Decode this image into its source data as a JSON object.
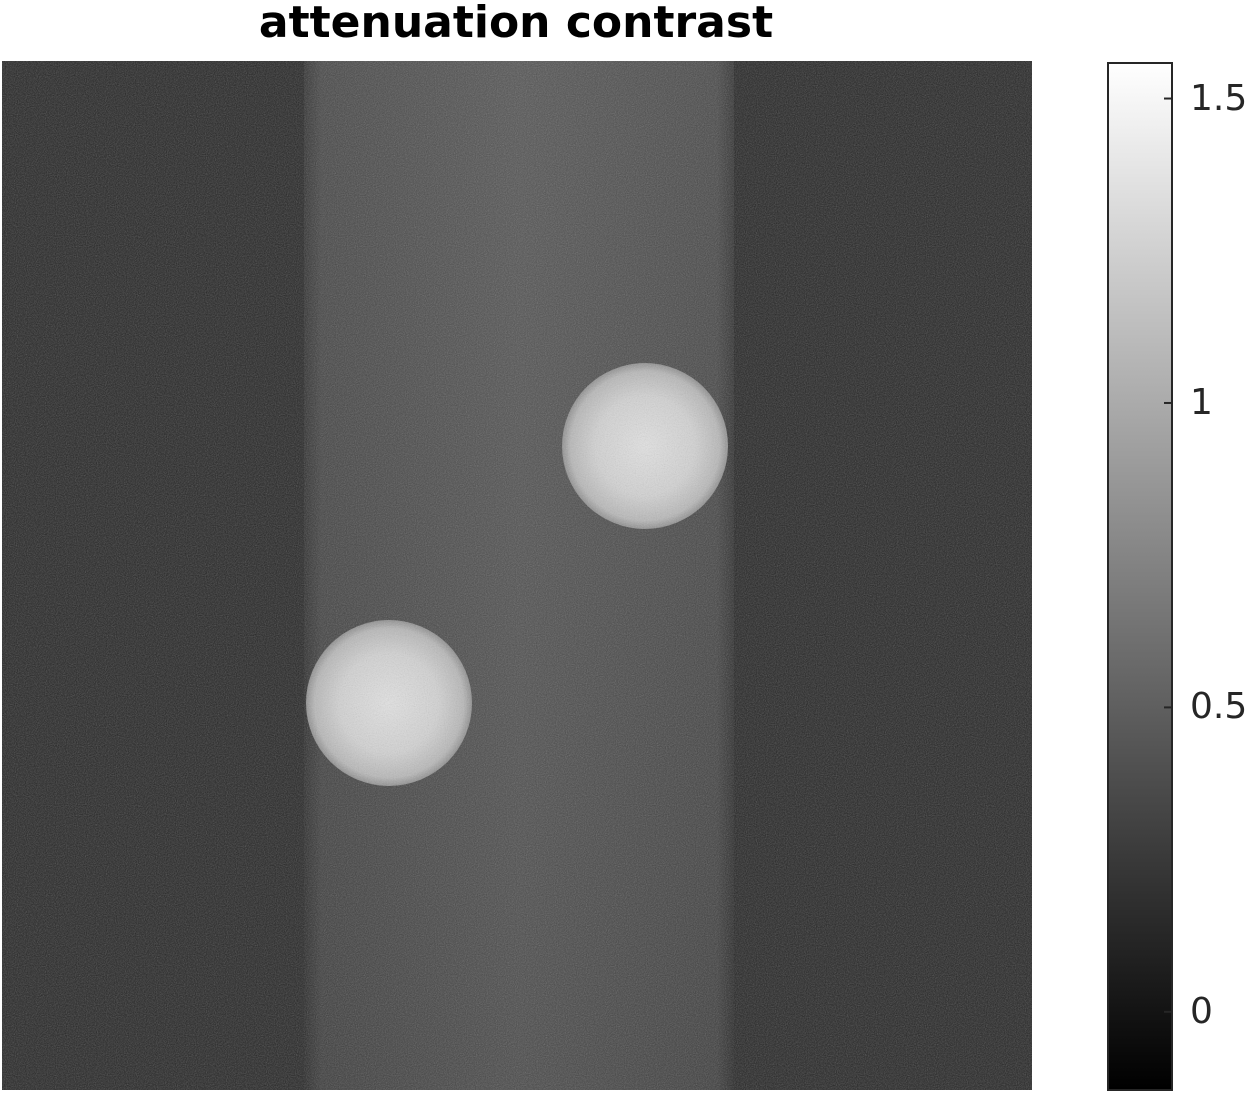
{
  "figure": {
    "title": "attenuation contrast"
  },
  "colorbar": {
    "min": -0.13,
    "max": 1.56,
    "ticks": [
      {
        "value": 0,
        "label": "0"
      },
      {
        "value": 0.5,
        "label": "0.5"
      },
      {
        "value": 1,
        "label": "1"
      },
      {
        "value": 1.5,
        "label": "1.5"
      }
    ]
  }
}
